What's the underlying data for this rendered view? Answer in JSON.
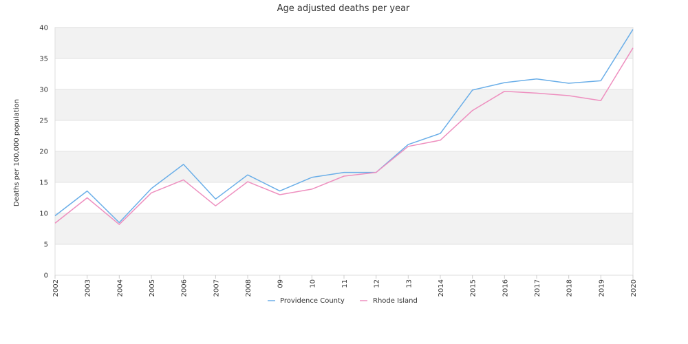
{
  "chart_data": {
    "type": "line",
    "title": "Age adjusted deaths per year",
    "xlabel": "",
    "ylabel": "Deaths per 100,000 population",
    "ylim": [
      0,
      40
    ],
    "yticks": [
      0,
      5,
      10,
      15,
      20,
      25,
      30,
      35,
      40
    ],
    "categories": [
      "2002",
      "2003",
      "2004",
      "2005",
      "2006",
      "2007",
      "2008",
      "09",
      "10",
      "11",
      "12",
      "13",
      "2014",
      "2015",
      "2016",
      "2017",
      "2018",
      "2019",
      "2020"
    ],
    "series": [
      {
        "name": "Providence County",
        "color": "#6aaee8",
        "values": [
          9.6,
          13.6,
          8.5,
          14.0,
          17.9,
          12.3,
          16.2,
          13.6,
          15.8,
          16.6,
          16.6,
          21.1,
          22.9,
          29.9,
          31.1,
          31.7,
          31.0,
          31.4,
          39.7
        ]
      },
      {
        "name": "Rhode Island",
        "color": "#ee8fbf",
        "values": [
          8.4,
          12.5,
          8.2,
          13.3,
          15.4,
          11.2,
          15.1,
          13.0,
          13.9,
          16.0,
          16.6,
          20.8,
          21.8,
          26.6,
          29.7,
          29.4,
          29.0,
          28.2,
          36.7
        ]
      }
    ],
    "grid": true,
    "legend_position": "bottom"
  }
}
